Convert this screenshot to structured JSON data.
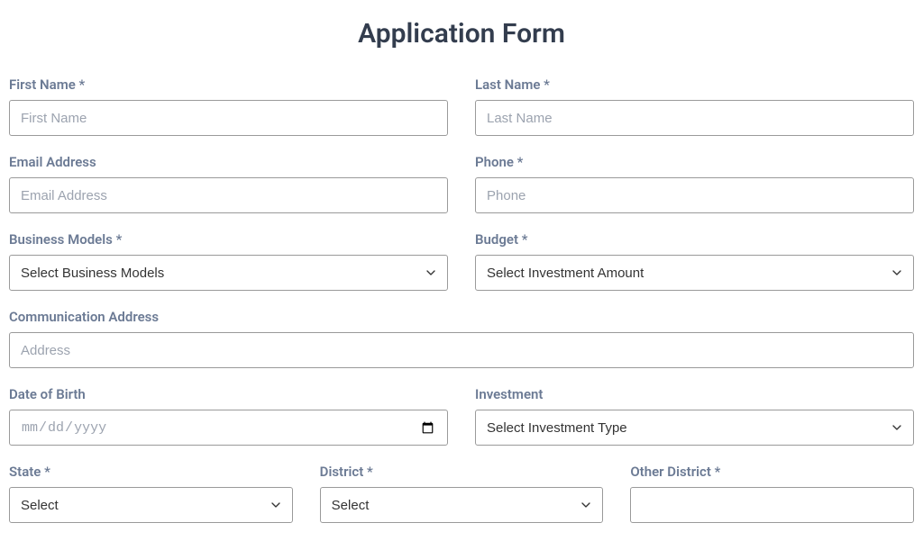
{
  "title": "Application Form",
  "colors": {
    "title_text": "#333d4e",
    "label_text": "#6b7a94",
    "border": "#9a9a9a",
    "placeholder": "#9ca3af",
    "background": "#ffffff"
  },
  "fields": {
    "first_name": {
      "label": "First Name *",
      "placeholder": "First Name",
      "value": ""
    },
    "last_name": {
      "label": "Last Name *",
      "placeholder": "Last Name",
      "value": ""
    },
    "email": {
      "label": "Email Address",
      "placeholder": "Email Address",
      "value": ""
    },
    "phone": {
      "label": "Phone *",
      "placeholder": "Phone",
      "value": ""
    },
    "business_models": {
      "label": "Business Models *",
      "selected": "Select Business Models"
    },
    "budget": {
      "label": "Budget *",
      "selected": "Select Investment Amount"
    },
    "communication_address": {
      "label": "Communication Address",
      "placeholder": "Address",
      "value": ""
    },
    "date_of_birth": {
      "label": "Date of Birth",
      "placeholder": "mm/dd/yyyy",
      "value": ""
    },
    "investment": {
      "label": "Investment",
      "selected": "Select Investment Type"
    },
    "state": {
      "label": "State *",
      "selected": "Select"
    },
    "district": {
      "label": "District *",
      "selected": "Select"
    },
    "other_district": {
      "label": "Other District *",
      "placeholder": "",
      "value": ""
    }
  }
}
